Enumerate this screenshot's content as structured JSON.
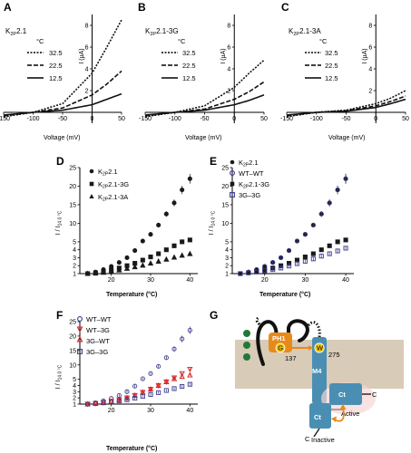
{
  "panels": {
    "A": {
      "letter": "A",
      "title": "K2P2.1",
      "t_main": "K",
      "t_sub": "2P",
      "t_rest": "2.1",
      "ylabel": "I (µA)",
      "xlabel": "Voltage (mV)",
      "legend_title": "°C",
      "legend": [
        "32.5",
        "22.5",
        "12.5"
      ],
      "xticks": [
        "-150",
        "-100",
        "-50",
        "0",
        "50"
      ],
      "yticks": [
        "2",
        "4",
        "6",
        "8"
      ]
    },
    "B": {
      "letter": "B",
      "title": "K2P2.1-3G",
      "t_main": "K",
      "t_sub": "2P",
      "t_rest": "2.1-3G",
      "ylabel": "I (µA)",
      "xlabel": "Voltage (mV)",
      "legend_title": "°C",
      "legend": [
        "32.5",
        "22.5",
        "12.5"
      ],
      "xticks": [
        "-150",
        "-100",
        "-50",
        "0",
        "50"
      ],
      "yticks": [
        "2",
        "4",
        "6",
        "8"
      ]
    },
    "C": {
      "letter": "C",
      "title": "K2P2.1-3A",
      "t_main": "K",
      "t_sub": "2P",
      "t_rest": "2.1-3A",
      "ylabel": "I (µA)",
      "xlabel": "Voltage (mV)",
      "legend_title": "°C",
      "legend": [
        "32.5",
        "22.5",
        "12.5"
      ],
      "xticks": [
        "-150",
        "-100",
        "-50",
        "0",
        "50"
      ],
      "yticks": [
        "2",
        "4",
        "6",
        "8"
      ]
    },
    "D": {
      "letter": "D",
      "xlabel": "Temperature (°C)",
      "ylabel": "I / I14.0 °C",
      "xticks": [
        "20",
        "30",
        "40"
      ],
      "yticks": [
        "1",
        "2",
        "3",
        "4",
        "5",
        "10",
        "15",
        "20",
        "25"
      ],
      "legend": [
        "K2P2.1",
        "K2P2.1-3G",
        "K2P2.1-3A"
      ]
    },
    "E": {
      "letter": "E",
      "xlabel": "Temperature (°C)",
      "ylabel": "I / I14.0 °C",
      "xticks": [
        "20",
        "30",
        "40"
      ],
      "yticks": [
        "1",
        "2",
        "3",
        "4",
        "5",
        "10",
        "15",
        "20",
        "25"
      ],
      "legend": [
        "K2P2.1",
        "WT–WT",
        "K2P2.1-3G",
        "3G–3G"
      ]
    },
    "F": {
      "letter": "F",
      "xlabel": "Temperature (°C)",
      "ylabel": "I / I14.0 °C",
      "xticks": [
        "20",
        "30",
        "40"
      ],
      "yticks": [
        "1",
        "2",
        "3",
        "4",
        "5",
        "10",
        "15",
        "20",
        "25"
      ],
      "legend": [
        "WT–WT",
        "WT–3G",
        "3G–WT",
        "3G–3G"
      ]
    },
    "G": {
      "letter": "G",
      "labels": {
        "ph1": "PH1",
        "g": "G",
        "w": "W",
        "n137": "137",
        "n275": "275",
        "m4": "M4",
        "ct1": "Ct",
        "ct2": "Ct",
        "c1": "C",
        "c2": "C",
        "active": "Active",
        "inactive": "Inactive"
      }
    }
  },
  "colors": {
    "black": "#1a1a1a",
    "blue": "#3a3a8c",
    "red": "#d42020",
    "membrane": "#d8cbb8",
    "teal": "#4a8fb3",
    "orange": "#e88a1a",
    "yellow": "#f2c300",
    "green": "#1f7a3a"
  },
  "chart_data": [
    {
      "type": "line",
      "panel": "A",
      "xlabel": "Voltage (mV)",
      "ylabel": "I (µA)",
      "xlim": [
        -150,
        50
      ],
      "ylim": [
        -1,
        9
      ],
      "series": [
        {
          "name": "32.5",
          "x": [
            -100,
            -50,
            0,
            25,
            50
          ],
          "values": [
            0,
            0.8,
            3.6,
            6.0,
            8.5
          ]
        },
        {
          "name": "22.5",
          "x": [
            -100,
            -50,
            0,
            25,
            50
          ],
          "values": [
            0,
            0.4,
            1.6,
            2.6,
            3.8
          ]
        },
        {
          "name": "12.5",
          "x": [
            -100,
            -50,
            0,
            25,
            50
          ],
          "values": [
            0,
            0.2,
            0.7,
            1.2,
            1.7
          ]
        }
      ]
    },
    {
      "type": "line",
      "panel": "B",
      "xlabel": "Voltage (mV)",
      "ylabel": "I (µA)",
      "xlim": [
        -150,
        50
      ],
      "ylim": [
        -1,
        9
      ],
      "series": [
        {
          "name": "32.5",
          "x": [
            -100,
            -50,
            0,
            25,
            50
          ],
          "values": [
            0,
            0.6,
            2.3,
            3.6,
            4.8
          ]
        },
        {
          "name": "22.5",
          "x": [
            -100,
            -50,
            0,
            25,
            50
          ],
          "values": [
            0,
            0.3,
            1.2,
            1.9,
            2.8
          ]
        },
        {
          "name": "12.5",
          "x": [
            -100,
            -50,
            0,
            25,
            50
          ],
          "values": [
            0,
            0.2,
            0.7,
            1.1,
            1.6
          ]
        }
      ]
    },
    {
      "type": "line",
      "panel": "C",
      "xlabel": "Voltage (mV)",
      "ylabel": "I (µA)",
      "xlim": [
        -150,
        50
      ],
      "ylim": [
        -1,
        9
      ],
      "series": [
        {
          "name": "32.5",
          "x": [
            -100,
            -50,
            0,
            25,
            50
          ],
          "values": [
            0,
            0.2,
            0.8,
            1.3,
            2.0
          ]
        },
        {
          "name": "22.5",
          "x": [
            -100,
            -50,
            0,
            25,
            50
          ],
          "values": [
            0,
            0.15,
            0.6,
            1.0,
            1.5
          ]
        },
        {
          "name": "12.5",
          "x": [
            -100,
            -50,
            0,
            25,
            50
          ],
          "values": [
            0,
            0.1,
            0.45,
            0.8,
            1.2
          ]
        }
      ]
    },
    {
      "type": "scatter",
      "panel": "D",
      "xlabel": "Temperature (°C)",
      "ylabel": "I / I14.0 °C",
      "xlim": [
        12,
        42
      ],
      "x": [
        14,
        16,
        18,
        20,
        22,
        24,
        26,
        28,
        30,
        32,
        34,
        36,
        38,
        40
      ],
      "series": [
        {
          "name": "K2P2.1",
          "values": [
            1,
            1.2,
            1.5,
            1.9,
            2.4,
            3.0,
            3.9,
            5.2,
            7.0,
            9.5,
            12.5,
            15.5,
            19.0,
            22.0
          ]
        },
        {
          "name": "K2P2.1-3G",
          "values": [
            1,
            1.1,
            1.25,
            1.45,
            1.7,
            2.0,
            2.3,
            2.7,
            3.1,
            3.5,
            4.0,
            4.5,
            5.0,
            5.5
          ]
        },
        {
          "name": "K2P2.1-3A",
          "values": [
            1,
            1.05,
            1.15,
            1.3,
            1.45,
            1.65,
            1.85,
            2.05,
            2.3,
            2.55,
            2.8,
            3.05,
            3.3,
            3.5
          ]
        }
      ]
    },
    {
      "type": "scatter",
      "panel": "E",
      "xlabel": "Temperature (°C)",
      "ylabel": "I / I14.0 °C",
      "xlim": [
        12,
        42
      ],
      "x": [
        14,
        16,
        18,
        20,
        22,
        24,
        26,
        28,
        30,
        32,
        34,
        36,
        38,
        40
      ],
      "series": [
        {
          "name": "K2P2.1",
          "values": [
            1,
            1.2,
            1.5,
            1.9,
            2.4,
            3.0,
            3.9,
            5.2,
            7.0,
            9.5,
            12.5,
            15.5,
            19.0,
            22.0
          ]
        },
        {
          "name": "WT–WT",
          "values": [
            1,
            1.2,
            1.5,
            1.9,
            2.4,
            3.0,
            3.9,
            5.2,
            7.0,
            9.5,
            12.5,
            15.5,
            19.0,
            22.0
          ]
        },
        {
          "name": "K2P2.1-3G",
          "values": [
            1,
            1.1,
            1.25,
            1.45,
            1.7,
            2.0,
            2.3,
            2.7,
            3.1,
            3.5,
            4.0,
            4.5,
            5.0,
            5.5
          ]
        },
        {
          "name": "3G–3G",
          "values": [
            1,
            1.1,
            1.2,
            1.35,
            1.5,
            1.7,
            1.95,
            2.25,
            2.55,
            2.85,
            3.2,
            3.5,
            3.85,
            4.2
          ]
        }
      ]
    },
    {
      "type": "scatter",
      "panel": "F",
      "xlabel": "Temperature (°C)",
      "ylabel": "I / I14.0 °C",
      "xlim": [
        12,
        42
      ],
      "x": [
        14,
        16,
        18,
        20,
        22,
        24,
        26,
        28,
        30,
        32,
        34,
        36,
        38,
        40
      ],
      "series": [
        {
          "name": "WT–WT",
          "values": [
            1,
            1.2,
            1.5,
            1.9,
            2.4,
            3.0,
            3.9,
            5.2,
            7.0,
            9.5,
            12.5,
            15.5,
            19.0,
            22.0
          ]
        },
        {
          "name": "WT–3G",
          "values": [
            1,
            1.1,
            1.25,
            1.45,
            1.7,
            2.0,
            2.4,
            2.9,
            3.4,
            4.0,
            4.6,
            5.5,
            7.0,
            8.5
          ]
        },
        {
          "name": "3G–WT",
          "values": [
            1,
            1.1,
            1.25,
            1.45,
            1.7,
            2.0,
            2.4,
            2.9,
            3.4,
            4.0,
            4.6,
            5.2,
            6.0,
            6.5
          ]
        },
        {
          "name": "3G–3G",
          "values": [
            1,
            1.1,
            1.2,
            1.35,
            1.5,
            1.7,
            1.95,
            2.25,
            2.55,
            2.85,
            3.2,
            3.5,
            3.85,
            4.2
          ]
        }
      ]
    }
  ]
}
